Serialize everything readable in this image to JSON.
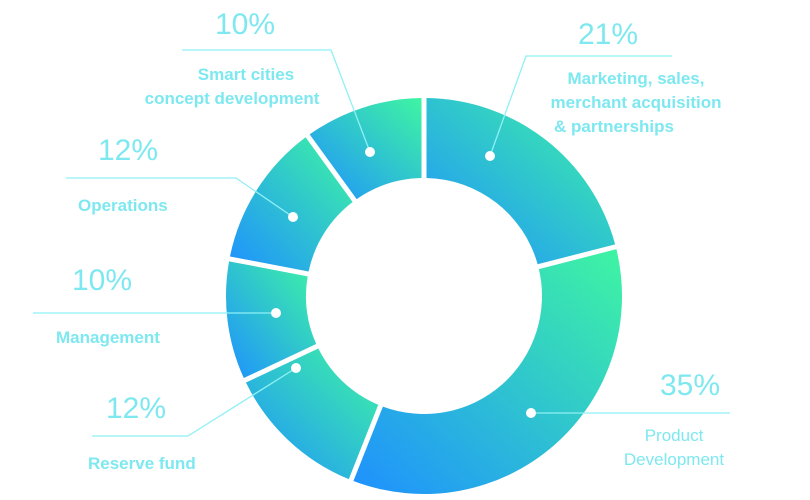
{
  "chart_data": {
    "type": "pie",
    "variant": "donut",
    "title": "",
    "slices": [
      {
        "label": [
          "Marketing, sales,",
          "merchant acquisition",
          "& partnerships"
        ],
        "percent_label": "21%",
        "value": 21
      },
      {
        "label": [
          "Product",
          "Development"
        ],
        "percent_label": "35%",
        "value": 35
      },
      {
        "label": [
          "Reserve fund"
        ],
        "percent_label": "12%",
        "value": 12
      },
      {
        "label": [
          "Management"
        ],
        "percent_label": "10%",
        "value": 10
      },
      {
        "label": [
          "Operations"
        ],
        "percent_label": "12%",
        "value": 12
      },
      {
        "label": [
          "Smart cities",
          "concept development"
        ],
        "percent_label": "10%",
        "value": 10
      }
    ],
    "colors": {
      "gradient_start": "#1e90ff",
      "gradient_end": "#3ff5a2",
      "text": "#7ee8f0",
      "leader": "#8ff0f5"
    }
  }
}
